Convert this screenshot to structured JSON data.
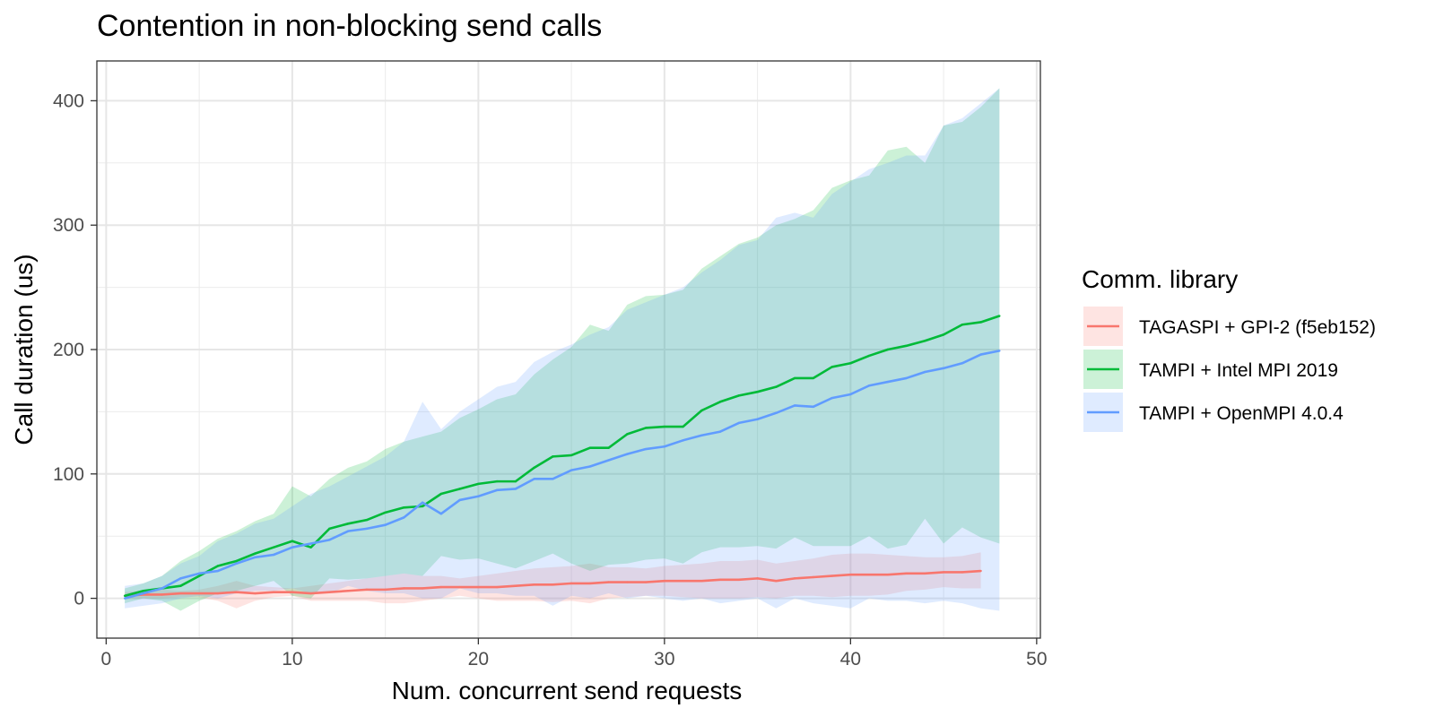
{
  "chart_data": {
    "type": "line",
    "title": "Contention in non-blocking send calls",
    "xlabel": "Num. concurrent send requests",
    "ylabel": "Call duration (us)",
    "xlim": [
      -0.5,
      50.2
    ],
    "ylim": [
      -32,
      432
    ],
    "x_ticks": [
      0,
      10,
      20,
      30,
      40,
      50
    ],
    "y_ticks": [
      0,
      100,
      200,
      300,
      400
    ],
    "grid": true,
    "legend": {
      "title": "Comm. library",
      "position": "right"
    },
    "series": [
      {
        "name": "TAGASPI + GPI-2 (f5eb152)",
        "color": "#F8766D",
        "fill_color": "#F8766D",
        "x": [
          1,
          2,
          3,
          4,
          5,
          6,
          7,
          8,
          9,
          10,
          11,
          12,
          13,
          14,
          15,
          16,
          17,
          18,
          19,
          20,
          21,
          22,
          23,
          24,
          25,
          26,
          27,
          28,
          29,
          30,
          31,
          32,
          33,
          34,
          35,
          36,
          37,
          38,
          39,
          40,
          41,
          42,
          43,
          44,
          45,
          46,
          47
        ],
        "values": [
          2,
          3,
          3,
          4,
          4,
          4,
          5,
          4,
          5,
          5,
          4,
          5,
          6,
          7,
          7,
          8,
          8,
          9,
          9,
          9,
          9,
          10,
          11,
          11,
          12,
          12,
          13,
          13,
          13,
          14,
          14,
          14,
          15,
          15,
          16,
          14,
          16,
          17,
          18,
          19,
          19,
          19,
          20,
          20,
          21,
          21,
          22
        ],
        "upper": [
          5,
          6,
          7,
          6,
          7,
          10,
          14,
          10,
          9,
          8,
          10,
          12,
          14,
          16,
          18,
          20,
          18,
          18,
          16,
          18,
          20,
          22,
          24,
          25,
          26,
          28,
          25,
          25,
          24,
          26,
          27,
          28,
          30,
          30,
          31,
          28,
          30,
          32,
          35,
          36,
          36,
          35,
          34,
          33,
          33,
          34,
          37
        ],
        "lower": [
          0,
          0,
          0,
          1,
          1,
          -2,
          -8,
          -2,
          1,
          2,
          -2,
          -2,
          -2,
          -2,
          -4,
          -4,
          -2,
          0,
          2,
          0,
          -2,
          -2,
          -2,
          -3,
          -2,
          -4,
          0,
          1,
          2,
          2,
          1,
          0,
          0,
          0,
          1,
          0,
          2,
          2,
          1,
          2,
          2,
          3,
          6,
          7,
          9,
          8,
          8
        ]
      },
      {
        "name": "TAMPI + Intel MPI 2019",
        "color": "#00BA38",
        "fill_color": "#00BA38",
        "x": [
          1,
          2,
          3,
          4,
          5,
          6,
          7,
          8,
          9,
          10,
          11,
          12,
          13,
          14,
          15,
          16,
          17,
          18,
          19,
          20,
          21,
          22,
          23,
          24,
          25,
          26,
          27,
          28,
          29,
          30,
          31,
          32,
          33,
          34,
          35,
          36,
          37,
          38,
          39,
          40,
          41,
          42,
          43,
          44,
          45,
          46,
          47,
          48
        ],
        "values": [
          2,
          6,
          8,
          10,
          18,
          26,
          30,
          36,
          41,
          46,
          41,
          56,
          60,
          63,
          69,
          73,
          74,
          84,
          88,
          92,
          94,
          94,
          105,
          114,
          115,
          121,
          121,
          132,
          137,
          138,
          138,
          151,
          158,
          163,
          166,
          170,
          177,
          177,
          186,
          189,
          195,
          200,
          203,
          207,
          212,
          220,
          222,
          227
        ],
        "upper": [
          8,
          12,
          18,
          30,
          38,
          48,
          54,
          62,
          68,
          90,
          82,
          96,
          105,
          110,
          120,
          126,
          130,
          134,
          145,
          152,
          160,
          164,
          180,
          192,
          202,
          220,
          215,
          236,
          243,
          244,
          248,
          265,
          275,
          285,
          290,
          300,
          305,
          312,
          330,
          336,
          340,
          360,
          363,
          350,
          380,
          383,
          395,
          410
        ],
        "lower": [
          -4,
          0,
          -2,
          -10,
          -2,
          4,
          6,
          10,
          14,
          2,
          0,
          16,
          15,
          16,
          18,
          20,
          18,
          34,
          31,
          32,
          28,
          24,
          30,
          36,
          28,
          22,
          27,
          28,
          31,
          32,
          28,
          37,
          41,
          41,
          42,
          40,
          49,
          42,
          42,
          42,
          50,
          40,
          43,
          64,
          44,
          57,
          49,
          44
        ]
      },
      {
        "name": "TAMPI + OpenMPI 4.0.4",
        "color": "#619CFF",
        "fill_color": "#619CFF",
        "x": [
          1,
          2,
          3,
          4,
          5,
          6,
          7,
          8,
          9,
          10,
          11,
          12,
          13,
          14,
          15,
          16,
          17,
          18,
          19,
          20,
          21,
          22,
          23,
          24,
          25,
          26,
          27,
          28,
          29,
          30,
          31,
          32,
          33,
          34,
          35,
          36,
          37,
          38,
          39,
          40,
          41,
          42,
          43,
          44,
          45,
          46,
          47,
          48
        ],
        "values": [
          0,
          4,
          8,
          16,
          20,
          22,
          28,
          33,
          35,
          41,
          44,
          47,
          54,
          56,
          59,
          65,
          77,
          68,
          79,
          82,
          87,
          88,
          96,
          96,
          103,
          106,
          111,
          116,
          120,
          122,
          127,
          131,
          134,
          141,
          144,
          149,
          155,
          154,
          161,
          164,
          171,
          174,
          177,
          182,
          185,
          189,
          196,
          199
        ],
        "upper": [
          10,
          12,
          18,
          28,
          34,
          46,
          52,
          60,
          64,
          74,
          84,
          90,
          98,
          106,
          114,
          126,
          158,
          136,
          150,
          160,
          170,
          174,
          190,
          198,
          204,
          212,
          218,
          232,
          238,
          244,
          250,
          262,
          272,
          284,
          288,
          306,
          310,
          306,
          325,
          335,
          345,
          350,
          356,
          356,
          380,
          386,
          398,
          410
        ],
        "lower": [
          -8,
          -6,
          -4,
          0,
          2,
          0,
          4,
          6,
          6,
          8,
          4,
          4,
          10,
          6,
          4,
          4,
          0,
          0,
          8,
          4,
          4,
          2,
          2,
          -6,
          2,
          0,
          4,
          0,
          2,
          0,
          -2,
          0,
          -4,
          -2,
          0,
          -8,
          0,
          -4,
          -6,
          -8,
          0,
          -2,
          -2,
          -4,
          -2,
          -4,
          -8,
          -10
        ]
      }
    ]
  }
}
